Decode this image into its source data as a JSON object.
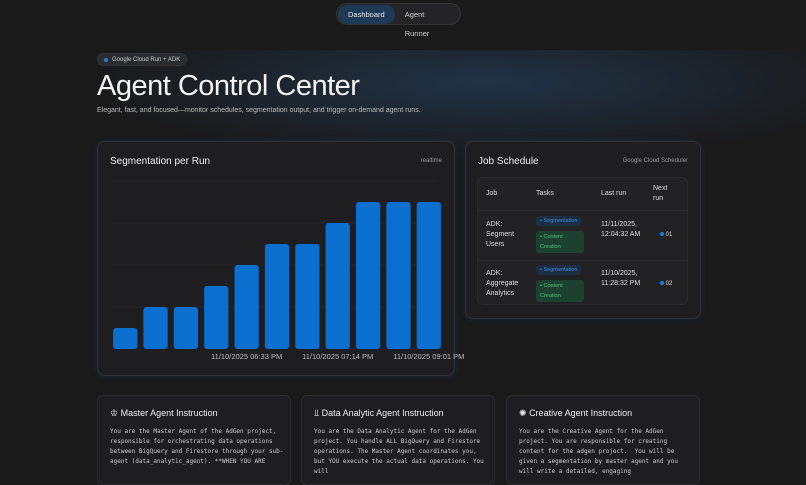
{
  "nav": {
    "tabs": [
      {
        "label": "Dashboard",
        "active": true
      },
      {
        "label": "Agent Runner",
        "active": false
      }
    ]
  },
  "hero": {
    "badge": "Google Cloud Run + ADK",
    "title": "Agent Control Center",
    "subtitle": "Elegant, fast, and focused—monitor schedules, segmentation output, and trigger on-demand agent runs."
  },
  "segmentation": {
    "title": "Segmentation per Run",
    "note": "realtime"
  },
  "chart_data": {
    "type": "bar",
    "title": "Segmentation per Run",
    "values": [
      1,
      2,
      2,
      3,
      4,
      5,
      5,
      6,
      7,
      7,
      7
    ],
    "ylim": [
      0,
      8
    ],
    "grid": true,
    "color": "#0a6fcf",
    "x_ticks": [
      {
        "index": 4,
        "label": "11/10/2025 06:33 PM"
      },
      {
        "index": 7,
        "label": "11/10/2025 07:14 PM"
      },
      {
        "index": 10,
        "label": "11/10/2025 09:01 PM"
      }
    ]
  },
  "schedule": {
    "title": "Job Schedule",
    "note": "Google Cloud Scheduler",
    "headers": [
      "Job",
      "Tasks",
      "Last run",
      "Next run"
    ],
    "rows": [
      {
        "job": "ADK: Segment Users",
        "tasks": [
          "Segmentation",
          "Content Creation"
        ],
        "last_run": "11/11/2025, 12:04:32 AM",
        "next": "01"
      },
      {
        "job": "ADK: Aggregate Analytics",
        "tasks": [
          "Segmentation",
          "Content Creation"
        ],
        "last_run": "11/10/2025, 11:28:32 PM",
        "next": "02"
      }
    ]
  },
  "instructions": [
    {
      "title": "Master Agent Instruction",
      "icon": "crown-icon",
      "body": "You are the Master Agent of the AdGen project, responsible for orchestrating data operations between BigQuery and Firestore through your sub-agent (data_analytic_agent). **WHEN YOU ARE"
    },
    {
      "title": "Data Analytic Agent Instruction",
      "icon": "bar-chart-icon",
      "body": "You are the Data Analytic Agent for the AdGen project. You handle ALL BigQuery and Firestore operations. The Master Agent coordinates you, but YOU execute the actual data operations. You will"
    },
    {
      "title": "Creative Agent Instruction",
      "icon": "sparkle-icon",
      "body": "You are the Creative Agent for the AdGen project. You are responsible for creating content for the adgen project.  You will be given a segmentation by master agent and you will write a detailed, engaging"
    }
  ]
}
